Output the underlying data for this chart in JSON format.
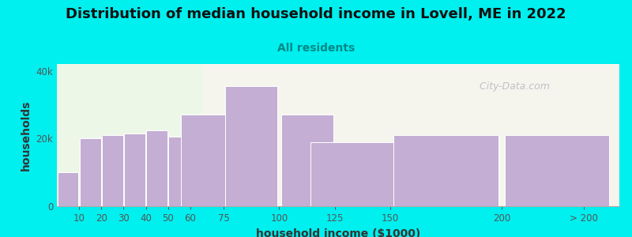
{
  "title": "Distribution of median household income in Lovell, ME in 2022",
  "subtitle": "All residents",
  "xlabel": "household income ($1000)",
  "ylabel": "households",
  "background_color": "#00EFEF",
  "plot_bg_color_left": "#edf7e8",
  "plot_bg_color_right": "#f5f5ee",
  "bar_color": "#c4aed4",
  "bar_edge_color": "#ffffff",
  "bar_positions": [
    5,
    15,
    25,
    35,
    45,
    55,
    67.5,
    87.5,
    112.5,
    137.5,
    175,
    225
  ],
  "bar_widths": [
    9.5,
    9.5,
    9.5,
    9.5,
    9.5,
    9.5,
    23.5,
    23.5,
    23.5,
    47,
    47,
    47
  ],
  "bar_heights": [
    10000,
    20000,
    21000,
    21500,
    22500,
    20500,
    27000,
    35500,
    27000,
    19000,
    21000,
    21000
  ],
  "ylim": [
    0,
    42000
  ],
  "yticks": [
    0,
    20000,
    40000
  ],
  "ytick_labels": [
    "0",
    "20k",
    "40k"
  ],
  "xlim": [
    0,
    253
  ],
  "green_span_end": 60,
  "watermark": "  City-Data.com",
  "title_fontsize": 13,
  "subtitle_fontsize": 10,
  "axis_label_fontsize": 10,
  "tick_fontsize": 8.5,
  "title_color": "#111111",
  "subtitle_color": "#008888",
  "axis_label_color": "#333333",
  "tick_color": "#555555",
  "watermark_color": "#b0b0b8",
  "spine_color": "#aaaaaa"
}
